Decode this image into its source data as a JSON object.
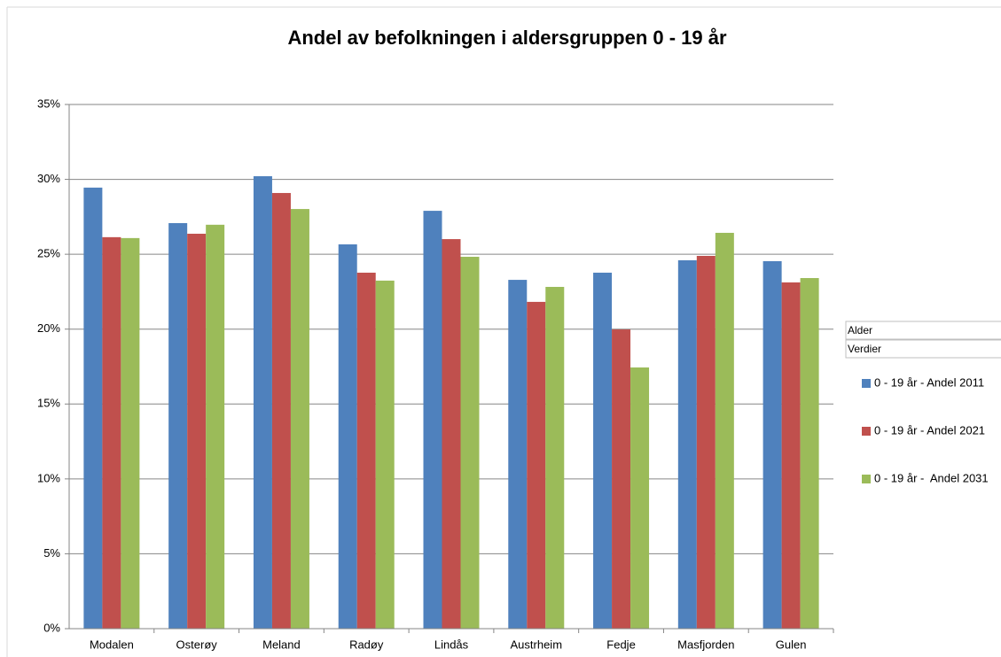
{
  "chart_data": {
    "type": "bar",
    "title": "Andel av befolkningen i aldersgruppen 0 - 19 år",
    "categories": [
      "Modalen",
      "Osterøy",
      "Meland",
      "Radøy",
      "Lindås",
      "Austrheim",
      "Fedje",
      "Masfjorden",
      "Gulen"
    ],
    "series": [
      {
        "name": "0 - 19 år - Andel 2011",
        "color": "#4f81bd",
        "values": [
          29.45,
          27.08,
          30.21,
          25.66,
          27.9,
          23.29,
          23.77,
          24.6,
          24.54
        ]
      },
      {
        "name": "0 - 19 år - Andel 2021",
        "color": "#c0504d",
        "values": [
          26.14,
          26.37,
          29.09,
          23.77,
          26.01,
          21.82,
          19.98,
          24.89,
          23.12
        ]
      },
      {
        "name": "0 - 19 år -  Andel 2031",
        "color": "#9bbb59",
        "values": [
          26.08,
          26.97,
          28.02,
          23.24,
          24.83,
          22.82,
          17.44,
          26.43,
          23.41
        ]
      }
    ],
    "ylim": [
      0,
      35
    ],
    "yticks": [
      {
        "value": 0,
        "label": "0%"
      },
      {
        "value": 5,
        "label": "5%"
      },
      {
        "value": 10,
        "label": "10%"
      },
      {
        "value": 15,
        "label": "15%"
      },
      {
        "value": 20,
        "label": "20%"
      },
      {
        "value": 25,
        "label": "25%"
      },
      {
        "value": 30,
        "label": "30%"
      },
      {
        "value": 35,
        "label": "35%"
      }
    ],
    "grid": true,
    "legend_fields": [
      "Alder",
      "Verdier"
    ]
  }
}
